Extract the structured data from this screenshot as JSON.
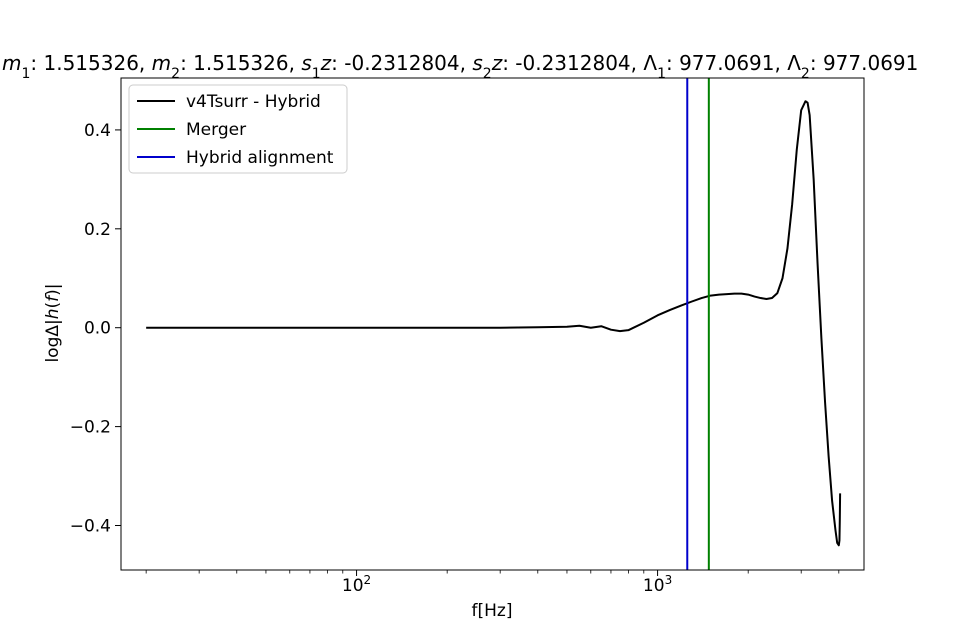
{
  "chart_data": {
    "type": "line",
    "title_segments": [
      {
        "t": "m",
        "i": true
      },
      {
        "t": "1",
        "sub": true
      },
      {
        "t": ": 1.515326, "
      },
      {
        "t": "m",
        "i": true
      },
      {
        "t": "2",
        "sub": true
      },
      {
        "t": ": 1.515326, "
      },
      {
        "t": "s",
        "i": true
      },
      {
        "t": "1",
        "sub": true
      },
      {
        "t": "z",
        "i": true
      },
      {
        "t": ": -0.2312804, "
      },
      {
        "t": "s",
        "i": true
      },
      {
        "t": "2",
        "sub": true
      },
      {
        "t": "z",
        "i": true
      },
      {
        "t": ": -0.2312804, "
      },
      {
        "t": "Λ"
      },
      {
        "t": "1",
        "sub": true
      },
      {
        "t": ": 977.0691, "
      },
      {
        "t": "Λ"
      },
      {
        "t": "2",
        "sub": true
      },
      {
        "t": ": 977.0691"
      }
    ],
    "xlabel": "f[Hz]",
    "ylabel_segments": [
      {
        "t": "log"
      },
      {
        "t": "Δ"
      },
      {
        "t": "|"
      },
      {
        "t": "h",
        "i": true
      },
      {
        "t": "("
      },
      {
        "t": "f",
        "i": true
      },
      {
        "t": ")|"
      }
    ],
    "xscale": "log",
    "xlim": [
      16.5,
      4850
    ],
    "ylim": [
      -0.49,
      0.505
    ],
    "x_ticks": [
      {
        "value": 100,
        "base": "10",
        "exp": "2"
      },
      {
        "value": 1000,
        "base": "10",
        "exp": "3"
      }
    ],
    "y_ticks": [
      {
        "value": 0.4,
        "label": "0.4"
      },
      {
        "value": 0.2,
        "label": "0.2"
      },
      {
        "value": 0.0,
        "label": "0.0"
      },
      {
        "value": -0.2,
        "label": "−0.2"
      },
      {
        "value": -0.4,
        "label": "−0.4"
      }
    ],
    "grid": false,
    "legend_position": "top-left",
    "series": [
      {
        "name": "v4Tsurr - Hybrid",
        "color": "#000000",
        "x": [
          20,
          100,
          200,
          300,
          400,
          500,
          550,
          600,
          650,
          700,
          750,
          800,
          900,
          1000,
          1100,
          1200,
          1300,
          1400,
          1500,
          1600,
          1700,
          1800,
          1900,
          2000,
          2100,
          2200,
          2300,
          2400,
          2500,
          2600,
          2700,
          2800,
          2900,
          3000,
          3100,
          3150,
          3200,
          3300,
          3400,
          3500,
          3600,
          3700,
          3800,
          3900,
          3950,
          4000,
          4020,
          4030,
          4040
        ],
        "y": [
          0.0,
          0.0,
          0.0,
          0.0,
          0.001,
          0.002,
          0.004,
          0.0,
          0.003,
          -0.004,
          -0.007,
          -0.005,
          0.01,
          0.025,
          0.036,
          0.045,
          0.053,
          0.06,
          0.065,
          0.067,
          0.068,
          0.069,
          0.069,
          0.067,
          0.063,
          0.06,
          0.058,
          0.06,
          0.07,
          0.1,
          0.16,
          0.25,
          0.36,
          0.44,
          0.458,
          0.455,
          0.43,
          0.3,
          0.13,
          -0.02,
          -0.15,
          -0.26,
          -0.35,
          -0.41,
          -0.435,
          -0.44,
          -0.43,
          -0.39,
          -0.335
        ]
      },
      {
        "name": "Merger",
        "color": "#008000",
        "vline_x": 1480
      },
      {
        "name": "Hybrid alignment",
        "color": "#0000cc",
        "vline_x": 1255
      }
    ]
  }
}
